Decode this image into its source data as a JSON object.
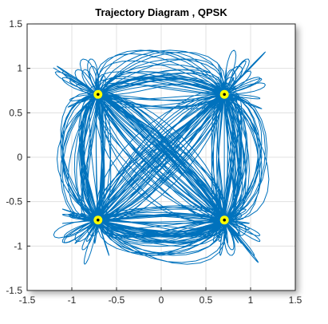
{
  "chart_data": {
    "type": "line",
    "title": "Trajectory Diagram , QPSK",
    "xlabel": "",
    "ylabel": "",
    "xlim": [
      -1.5,
      1.5
    ],
    "ylim": [
      -1.5,
      1.5
    ],
    "xticks": [
      -1.5,
      -1,
      -0.5,
      0,
      0.5,
      1,
      1.5
    ],
    "yticks": [
      -1.5,
      -1,
      -0.5,
      0,
      0.5,
      1,
      1.5
    ],
    "xtick_labels": [
      "-1.5",
      "-1",
      "-0.5",
      "0",
      "0.5",
      "1",
      "1.5"
    ],
    "ytick_labels": [
      "-1.5",
      "-1",
      "-0.5",
      "0",
      "0.5",
      "1",
      "1.5"
    ],
    "grid": true,
    "series": [
      {
        "kind": "trajectory",
        "color": "#0072BD",
        "description_points": "dense filtered-QPSK trajectories between the four constellation points"
      },
      {
        "kind": "constellation",
        "color": "#FFFF00",
        "points": [
          {
            "x": 0.707,
            "y": 0.707
          },
          {
            "x": -0.707,
            "y": 0.707
          },
          {
            "x": -0.707,
            "y": -0.707
          },
          {
            "x": 0.707,
            "y": -0.707
          }
        ]
      }
    ]
  },
  "colors": {
    "trajectory": "#0072BD",
    "constellation": "#FFFF00",
    "grid": "#e0e0e0",
    "axes": "#262626"
  }
}
